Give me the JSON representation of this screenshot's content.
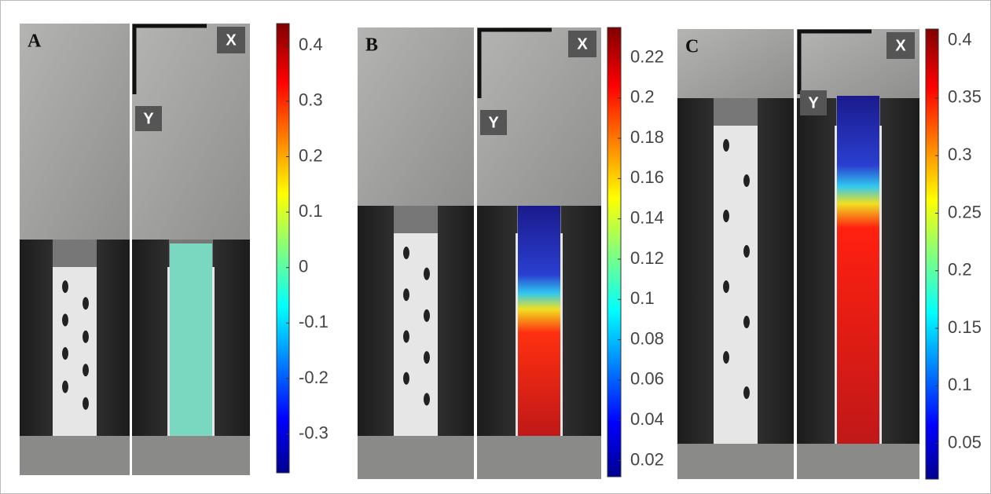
{
  "panels": [
    {
      "label": "A",
      "x_label": "X",
      "y_label": "Y",
      "colorbar": {
        "lim": [
          -0.37,
          0.44
        ],
        "ticks": [
          0.4,
          0.3,
          0.2,
          0.1,
          0,
          -0.1,
          -0.2,
          -0.3
        ]
      }
    },
    {
      "label": "B",
      "x_label": "X",
      "y_label": "Y",
      "colorbar": {
        "lim": [
          0.012,
          0.235
        ],
        "ticks": [
          0.22,
          0.2,
          0.18,
          0.16,
          0.14,
          0.12,
          0.1,
          0.08,
          0.06,
          0.04,
          0.02
        ]
      }
    },
    {
      "label": "C",
      "x_label": "X",
      "y_label": "Y",
      "colorbar": {
        "lim": [
          0.019,
          0.41
        ],
        "ticks": [
          0.4,
          0.35,
          0.3,
          0.25,
          0.2,
          0.15,
          0.1,
          0.05
        ]
      }
    }
  ]
}
